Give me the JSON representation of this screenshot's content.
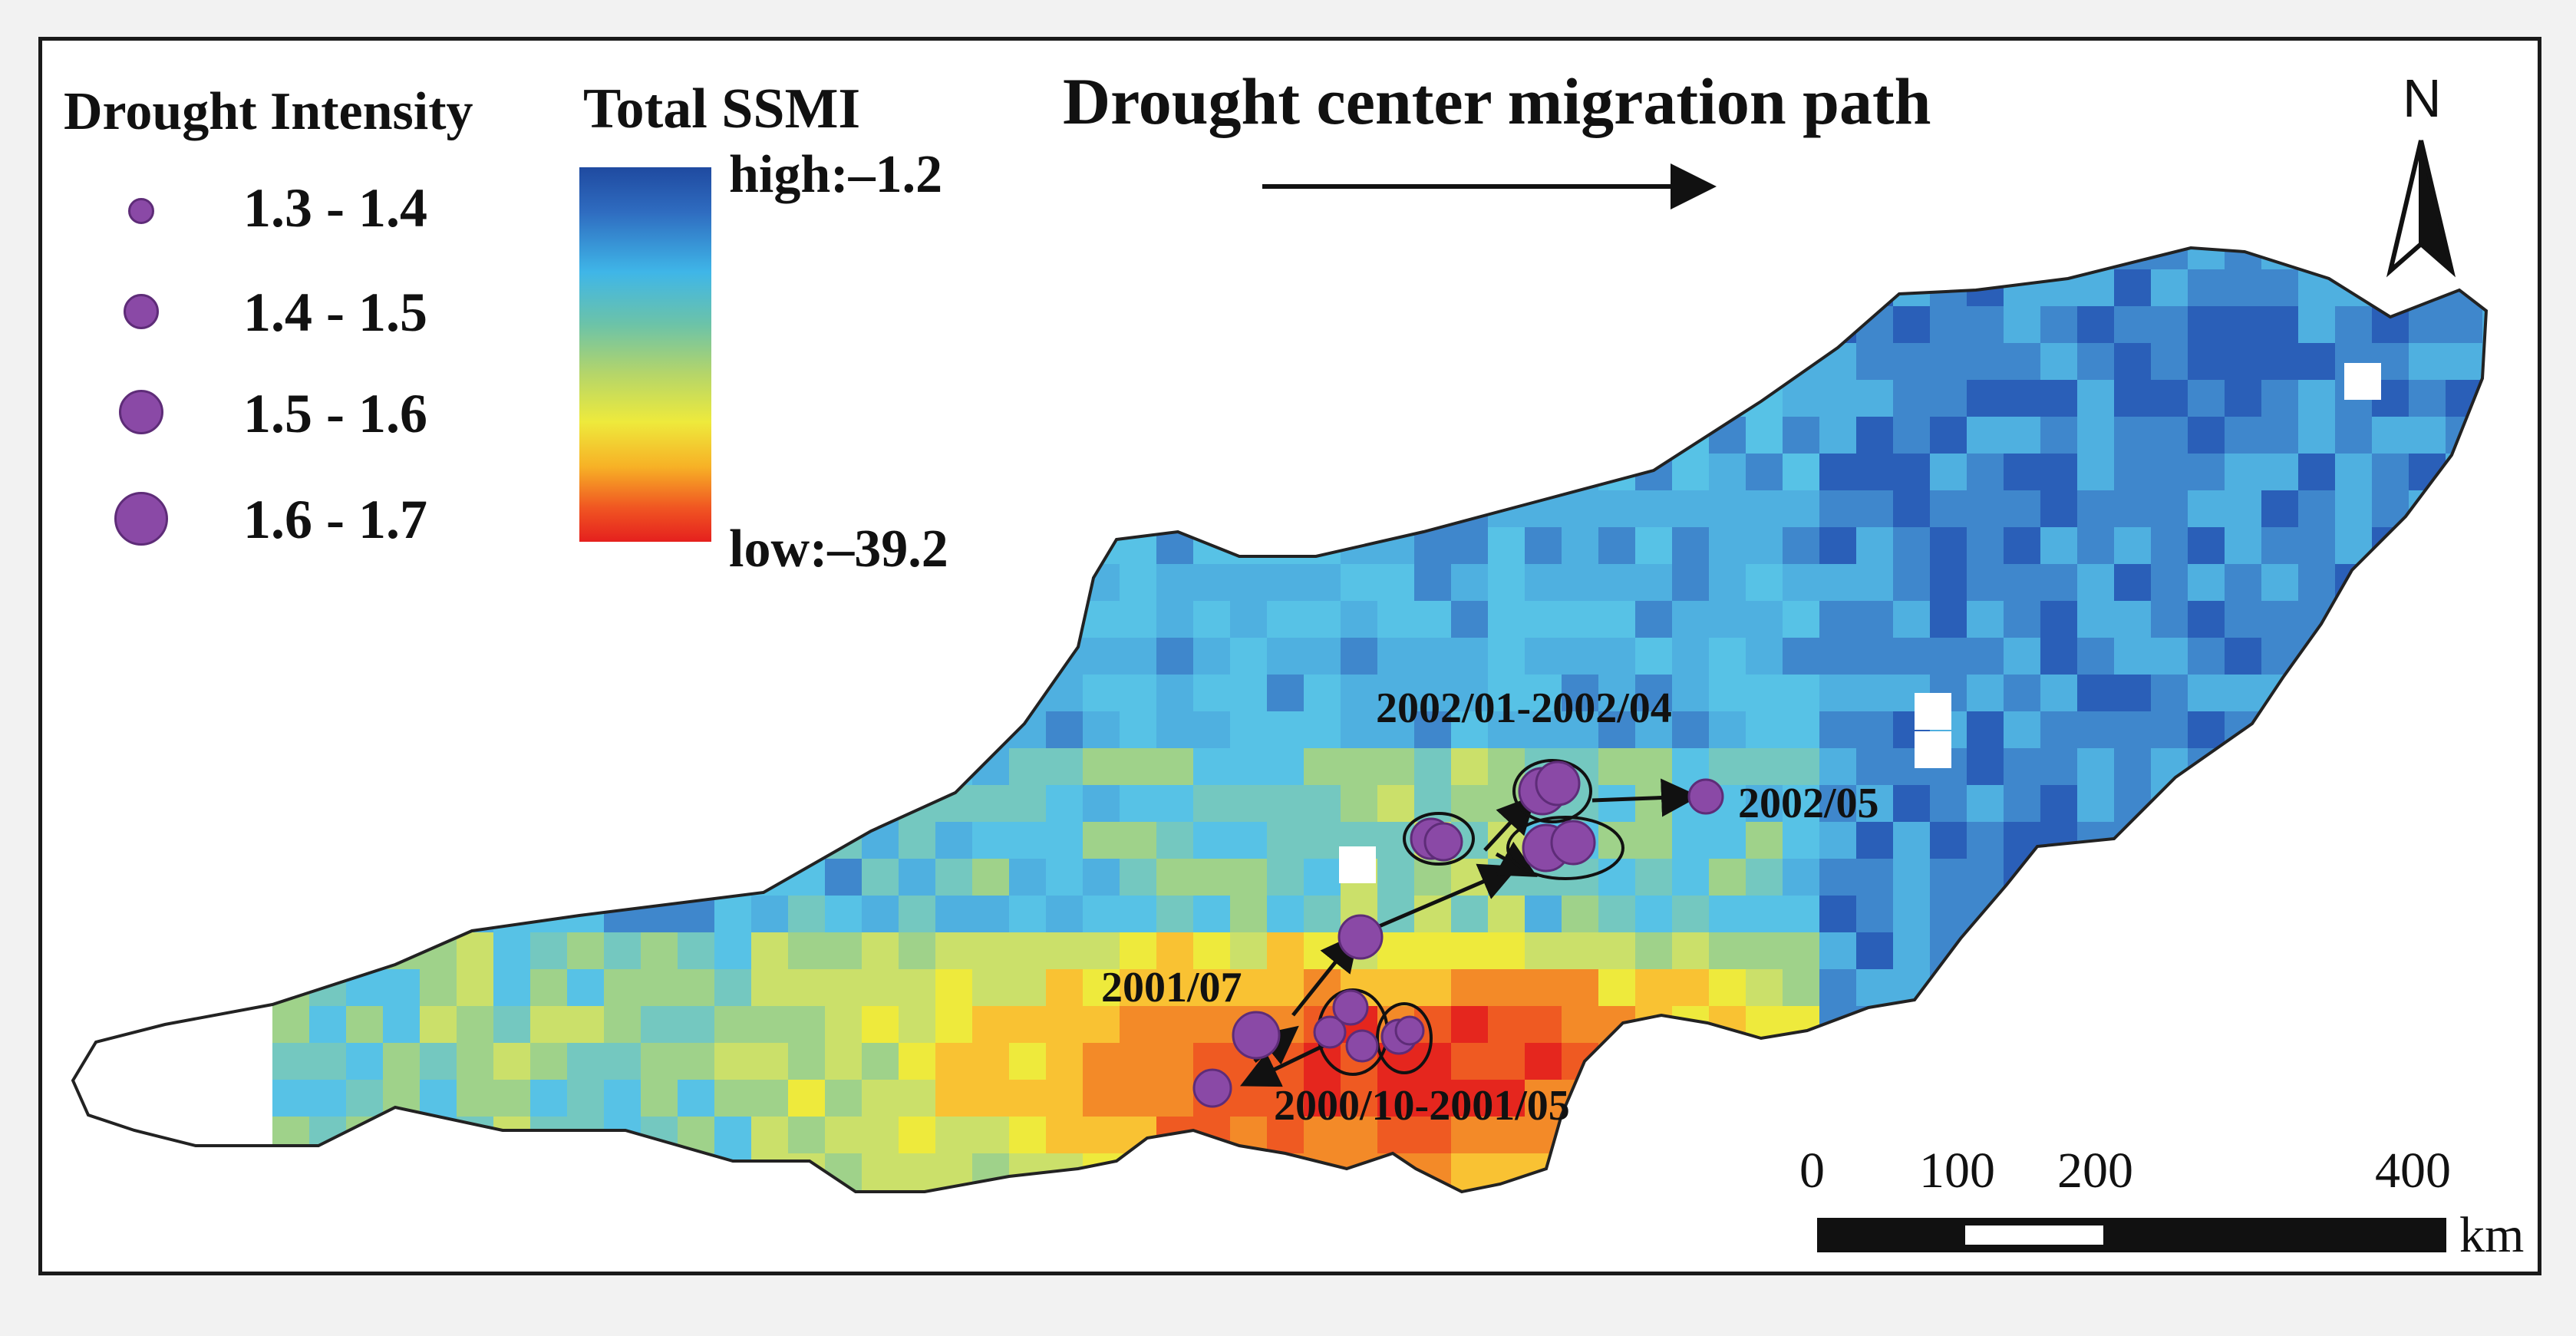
{
  "legend": {
    "intensity_title": "Drought Intensity",
    "intensity_classes": [
      {
        "label": "1.3 - 1.4",
        "size_rank": 1
      },
      {
        "label": "1.4 - 1.5",
        "size_rank": 2
      },
      {
        "label": "1.5 - 1.6",
        "size_rank": 3
      },
      {
        "label": "1.6 - 1.7",
        "size_rank": 4
      }
    ],
    "ssmi_title": "Total SSMI",
    "ssmi_high": "high:–1.2",
    "ssmi_low": "low:–39.2",
    "ssmi_colors": [
      "#1f4aa0",
      "#3fb6e8",
      "#b4d56a",
      "#eeea3c",
      "#f05522",
      "#e5201e"
    ]
  },
  "path_title": "Drought center migration path",
  "north_label": "N",
  "labels": {
    "period_2000_2001": "2000/10-2001/05",
    "period_2001_07": "2001/07",
    "period_2002_jan_apr": "2002/01-2002/04",
    "period_2002_05": "2002/05"
  },
  "scale_bar": {
    "ticks": [
      "0",
      "100",
      "200",
      "400"
    ],
    "unit": "km"
  },
  "colors": {
    "point_fill": "#8a49a6",
    "point_stroke": "#5e2c78"
  }
}
